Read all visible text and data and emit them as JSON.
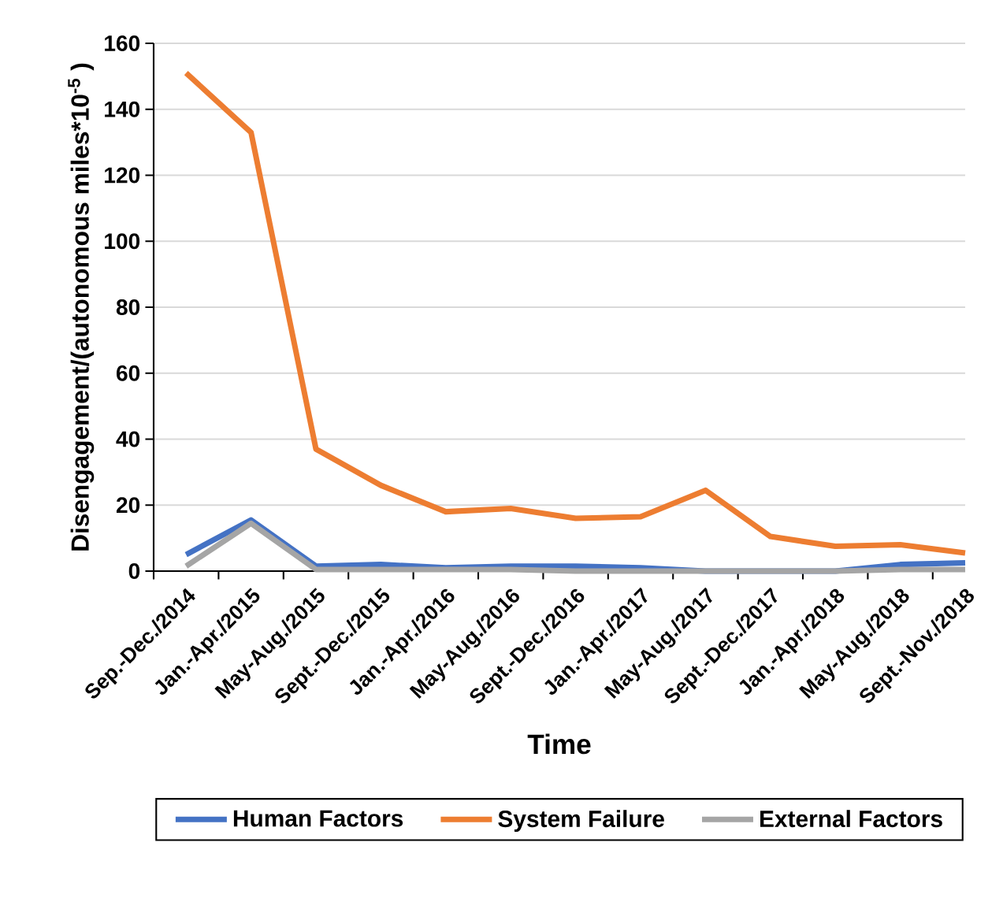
{
  "chart_data": {
    "type": "line",
    "xlabel": "Time",
    "ylabel": "Disengagement/(autonomous miles*10$^{-5}$ )",
    "categories": [
      "Sep.-Dec./2014",
      "Jan.-Apr./2015",
      "May-Aug./2015",
      "Sept.-Dec./2015",
      "Jan.-Apr./2016",
      "May-Aug./2016",
      "Sept.-Dec./2016",
      "Jan.-Apr./2017",
      "May-Aug./2017",
      "Sept.-Dec./2017",
      "Jan.-Apr./2018",
      "May-Aug./2018",
      "Sept.-Nov./2018"
    ],
    "series": [
      {
        "name": "Human Factors",
        "color": "#4472c4",
        "values": [
          5,
          15.5,
          1.5,
          2,
          1,
          1.5,
          1.5,
          1,
          0,
          0,
          0,
          2,
          2.5
        ]
      },
      {
        "name": "System Failure",
        "color": "#ed7d31",
        "values": [
          151,
          133,
          37,
          26,
          18,
          19,
          16,
          16.5,
          24.5,
          10.5,
          7.5,
          8,
          5.5
        ]
      },
      {
        "name": "External Factors",
        "color": "#a5a5a5",
        "values": [
          1.5,
          14.5,
          0.5,
          0.5,
          0.5,
          0.5,
          0,
          0,
          0,
          0,
          0,
          0.5,
          0.5
        ]
      }
    ],
    "ylim": [
      0,
      160
    ],
    "yticks": [
      0,
      20,
      40,
      60,
      80,
      100,
      120,
      140,
      160
    ],
    "grid": "y",
    "legend": "bottom",
    "marker": "none",
    "line_style": "solid"
  }
}
